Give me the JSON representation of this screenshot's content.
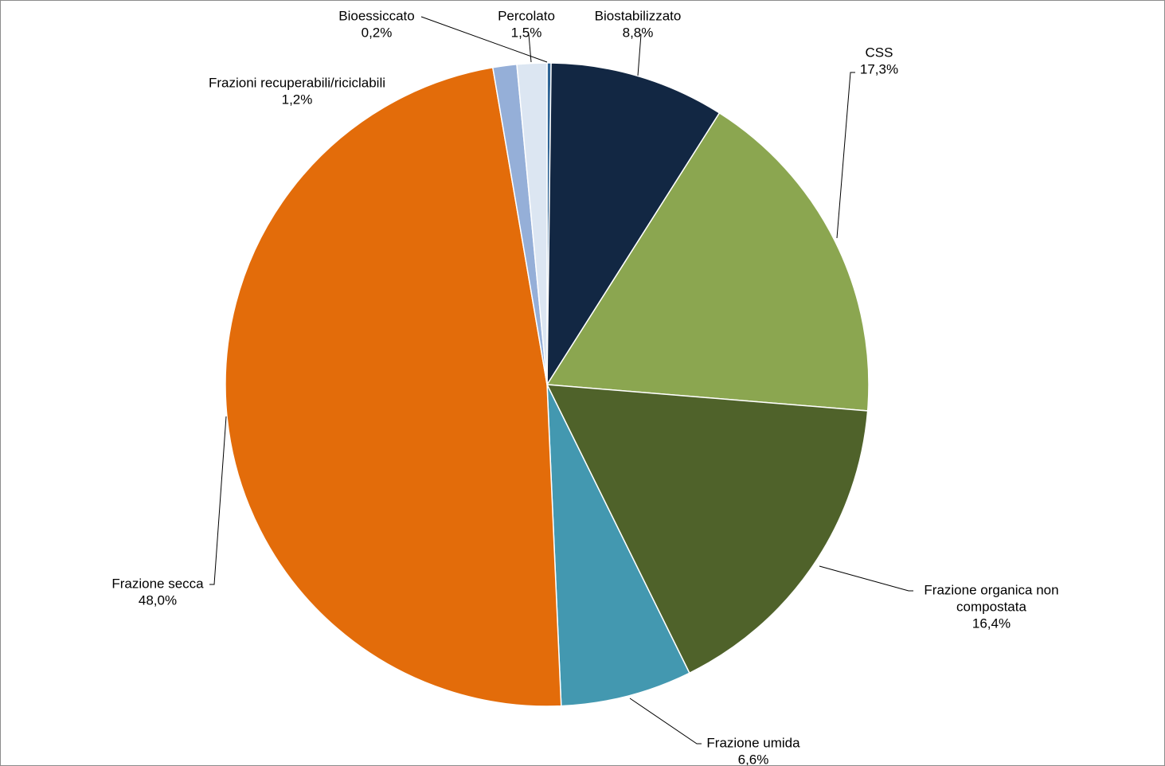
{
  "chart_data": {
    "type": "pie",
    "start_angle_deg": 90,
    "direction": "clockwise",
    "slices": [
      {
        "name": "Bioessiccato",
        "value": 0.2,
        "label_name": "Bioessiccato",
        "label_value": "0,2%",
        "color": "#2E6496"
      },
      {
        "name": "Biostabilizzato",
        "value": 8.8,
        "label_name": "Biostabilizzato",
        "label_value": "8,8%",
        "color": "#122743"
      },
      {
        "name": "CSS",
        "value": 17.3,
        "label_name": "CSS",
        "label_value": "17,3%",
        "color": "#8BA650"
      },
      {
        "name": "Frazione organica non compostata",
        "value": 16.4,
        "label_name": [
          "Frazione organica non",
          "compostata"
        ],
        "label_value": "16,4%",
        "color": "#4F622A"
      },
      {
        "name": "Frazione umida",
        "value": 6.6,
        "label_name": "Frazione umida",
        "label_value": "6,6%",
        "color": "#4398B0"
      },
      {
        "name": "Frazione secca",
        "value": 48.0,
        "label_name": "Frazione secca",
        "label_value": "48,0%",
        "color": "#E36C0A"
      },
      {
        "name": "Frazioni recuperabili/riciclabili",
        "value": 1.2,
        "label_name": "Frazioni recuperabili/riciclabili",
        "label_value": "1,2%",
        "color": "#95AFD8"
      },
      {
        "name": "Percolato",
        "value": 1.5,
        "label_name": "Percolato",
        "label_value": "1,5%",
        "color": "#DCE6F2"
      }
    ]
  }
}
